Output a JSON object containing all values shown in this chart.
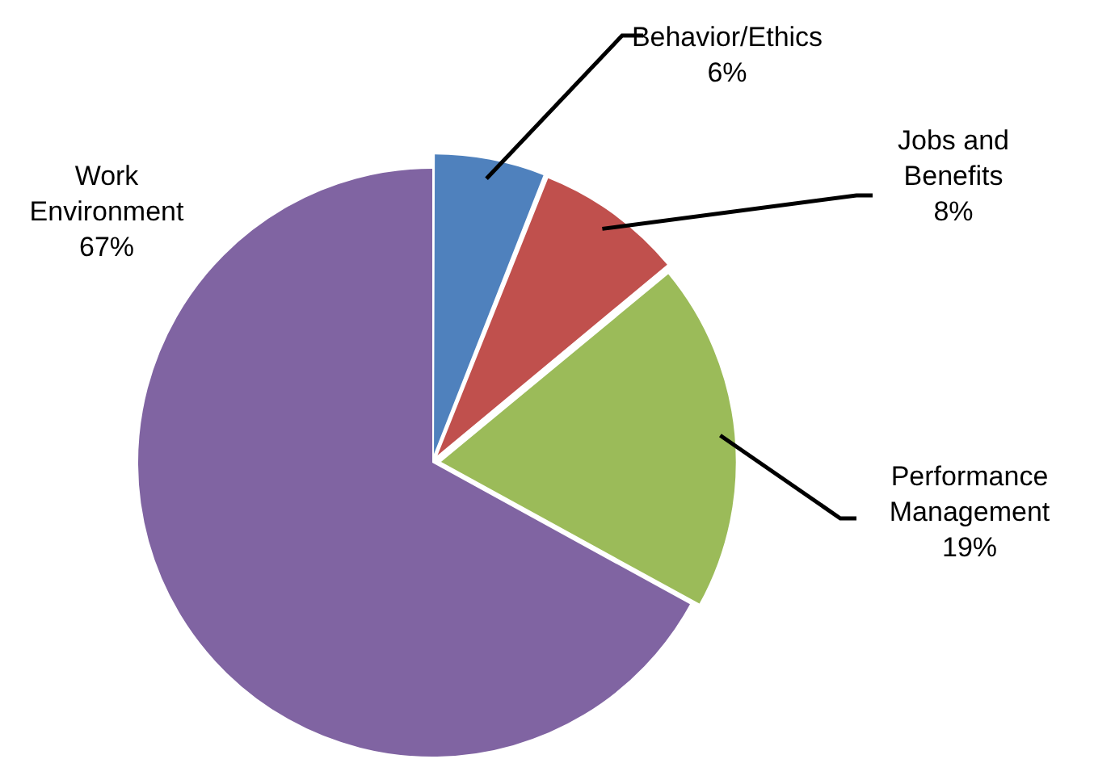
{
  "chart_data": {
    "type": "pie",
    "categories": [
      "Behavior/Ethics",
      "Jobs and Benefits",
      "Performance Management",
      "Work Environment"
    ],
    "values": [
      6,
      8,
      19,
      67
    ],
    "value_labels": [
      "6%",
      "8%",
      "19%",
      "67%"
    ],
    "colors": [
      "#4f81bd",
      "#c0504d",
      "#9bbb59",
      "#8064a2"
    ],
    "legend": false
  }
}
